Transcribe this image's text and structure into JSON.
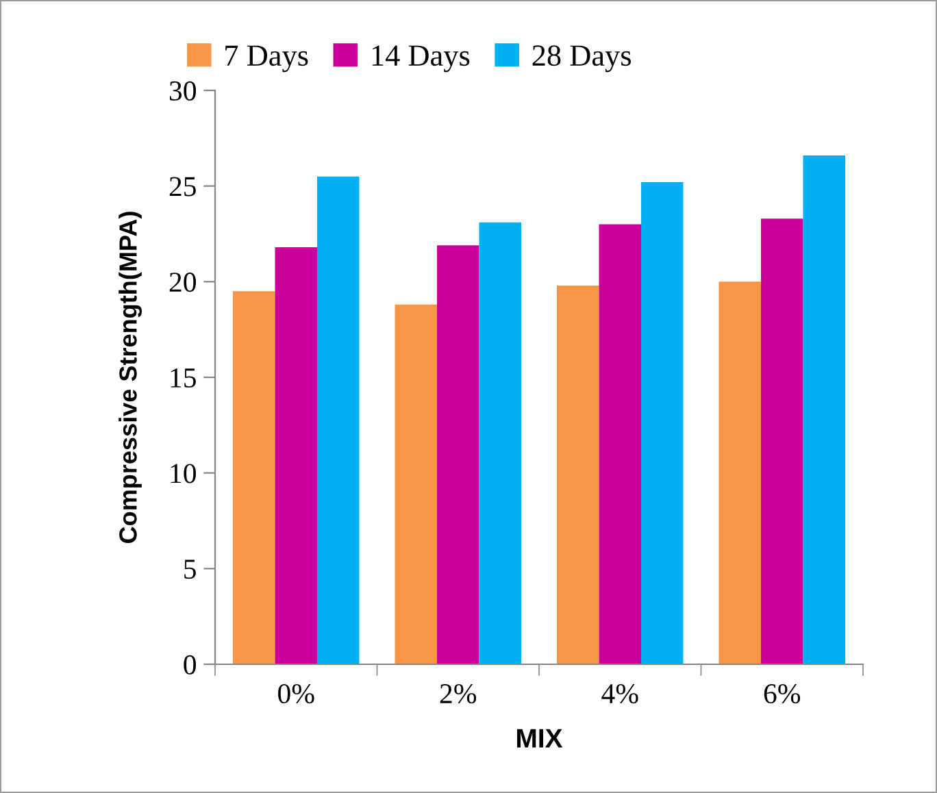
{
  "chart_data": {
    "type": "bar",
    "xlabel": "MIX",
    "ylabel": "Compressive Strength(MPA)",
    "categories": [
      "0%",
      "2%",
      "4%",
      "6%"
    ],
    "series": [
      {
        "name": "7 Days",
        "color": "#f79646",
        "values": [
          19.5,
          18.8,
          19.8,
          20.0
        ]
      },
      {
        "name": "14 Days",
        "color": "#cc0099",
        "values": [
          21.8,
          21.9,
          23.0,
          23.3
        ]
      },
      {
        "name": "28 Days",
        "color": "#00b0f0",
        "values": [
          25.5,
          23.1,
          25.2,
          26.6
        ]
      }
    ],
    "ylim": [
      0,
      30
    ],
    "yticks": [
      0,
      5,
      10,
      15,
      20,
      25,
      30
    ],
    "grid": false,
    "legend": "top"
  }
}
